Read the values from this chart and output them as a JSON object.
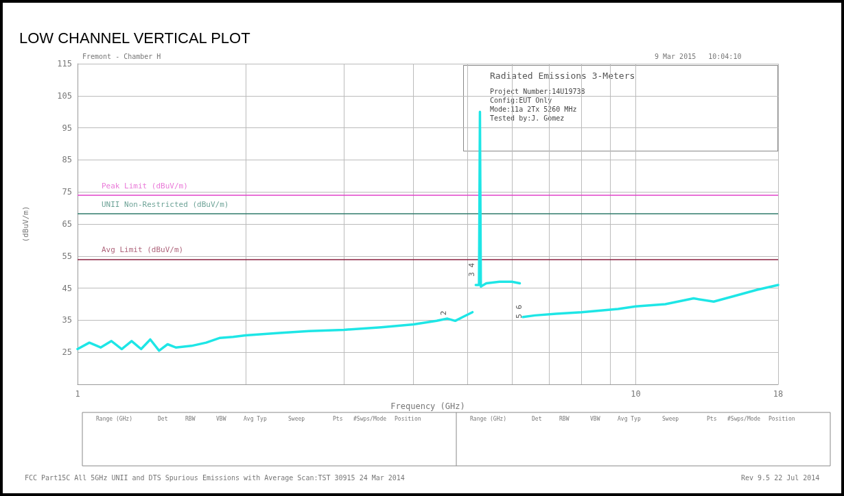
{
  "chart_data": {
    "type": "line",
    "title": "LOW CHANNEL VERTICAL PLOT",
    "xlabel": "Frequency (GHz)",
    "ylabel": "(dBuV/m)",
    "log": "x",
    "grid": true,
    "marker": "none",
    "line_style": "solid",
    "xlim": [
      1,
      18
    ],
    "xticks": [
      1,
      {
        "value": 2,
        "label": null
      },
      {
        "value": 3,
        "label": null
      },
      {
        "value": 4,
        "label": null
      },
      {
        "value": 5,
        "label": null
      },
      {
        "value": 6,
        "label": null
      },
      {
        "value": 7,
        "label": null
      },
      {
        "value": 8,
        "label": null
      },
      {
        "value": 9,
        "label": null
      },
      10,
      18
    ],
    "ylim": [
      15,
      115
    ],
    "yticks": [
      {
        "value": 15,
        "label": null
      },
      25,
      35,
      45,
      55,
      65,
      75,
      85,
      95,
      105,
      115
    ],
    "series": [
      {
        "color": "#1ee6e6",
        "x": [
          1,
          1.05,
          1.1,
          1.15,
          1.2,
          1.25,
          1.3,
          1.35,
          1.4,
          1.45,
          1.5,
          1.6,
          1.7,
          1.8,
          1.9,
          2,
          2.3,
          2.6,
          3,
          3.5,
          4,
          4.4,
          4.6,
          4.75,
          4.9,
          5.1,
          5.13,
          5.17,
          5.2,
          5.24,
          5.26,
          5.28,
          5.4,
          5.7,
          6,
          6.2,
          6.24,
          6.28,
          6.6,
          7.2,
          8,
          9.3,
          10,
          11.3,
          12.7,
          13.8,
          15,
          16.5,
          18
        ],
        "values": [
          26,
          28,
          26.5,
          28.5,
          26,
          28.5,
          26,
          29,
          25.5,
          27.5,
          26.5,
          27,
          28,
          29.5,
          29.8,
          30.3,
          31,
          31.6,
          32,
          32.8,
          33.7,
          34.8,
          35.5,
          34.8,
          36,
          37.5,
          null,
          46,
          46,
          46,
          100,
          45.5,
          46.5,
          47,
          47,
          46.5,
          null,
          36,
          36.5,
          37,
          37.5,
          38.5,
          39.3,
          40,
          41.8,
          40.8,
          42.5,
          44.5,
          46
        ]
      }
    ],
    "ref_lines": [
      {
        "axis": "y",
        "value": 74,
        "label": "Peak Limit (dBuV/m)",
        "color": "#e040c8"
      },
      {
        "axis": "y",
        "value": 68.2,
        "label": "UNII Non-Restricted (dBuV/m)",
        "color": "#2e7a6a"
      },
      {
        "axis": "y",
        "value": 54,
        "label": "Avg Limit (dBuV/m)",
        "color": "#8a2040"
      }
    ],
    "annotations": [
      "Fremont - Chamber H",
      "9 Mar 2015   10:04:10",
      "Radiated Emissions 3-Meters",
      "Project Number:14U19738",
      "Config:EUT Only",
      "Mode:11a 2Tx 5260 MHz",
      "Tested by:J. Gomez",
      "FCC Part15C All 5GHz UNII and DTS Spurious Emissions with Average Scan:TST 30915 24 Mar 2014",
      "Rev 9.5 22 Jul 2014",
      "Range (GHz)",
      "Det",
      "RBW",
      "VBW",
      "Avg Typ",
      "Sweep",
      "Pts",
      "#Swps/Mode",
      "Position",
      {
        "text": "2",
        "x": 4.6,
        "y": 35.5
      },
      {
        "text": "3 4",
        "x": 5.17,
        "y": 49
      },
      {
        "text": "5 6",
        "x": 6.28,
        "y": 36
      }
    ]
  }
}
